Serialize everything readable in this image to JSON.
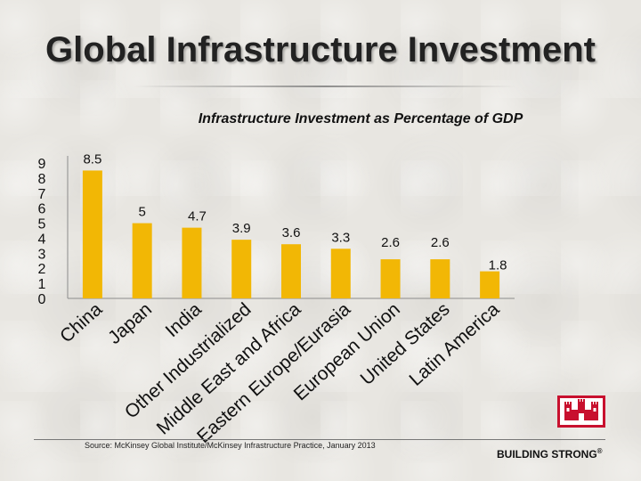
{
  "slide": {
    "title": "Global Infrastructure Investment",
    "source": "Source: McKinsey Global Institute/McKinsey Infrastructure Practice, January 2013",
    "tagline": "BUILDING STRONG",
    "registered": "®"
  },
  "colors": {
    "bar": "#f2b705",
    "axis": "#8c8c8c",
    "logo_red": "#c8102e"
  },
  "chart_data": {
    "type": "bar",
    "title": "Infrastructure Investment as Percentage of GDP",
    "xlabel": "",
    "ylabel": "",
    "ylim": [
      0,
      9
    ],
    "yticks": [
      "0",
      "1",
      "2",
      "3",
      "4",
      "5",
      "6",
      "7",
      "8",
      "9"
    ],
    "grid": false,
    "categories": [
      "China",
      "Japan",
      "India",
      "Other Industrialized",
      "Middle East and Africa",
      "Eastern Europe/Eurasia",
      "European Union",
      "United States",
      "Latin America"
    ],
    "values": [
      8.5,
      5,
      4.7,
      3.9,
      3.6,
      3.3,
      2.6,
      2.6,
      1.8
    ],
    "data_labels": [
      "8.5",
      "5",
      "4.7",
      "3.9",
      "3.6",
      "3.3",
      "2.6",
      "2.6",
      "1.8"
    ]
  }
}
